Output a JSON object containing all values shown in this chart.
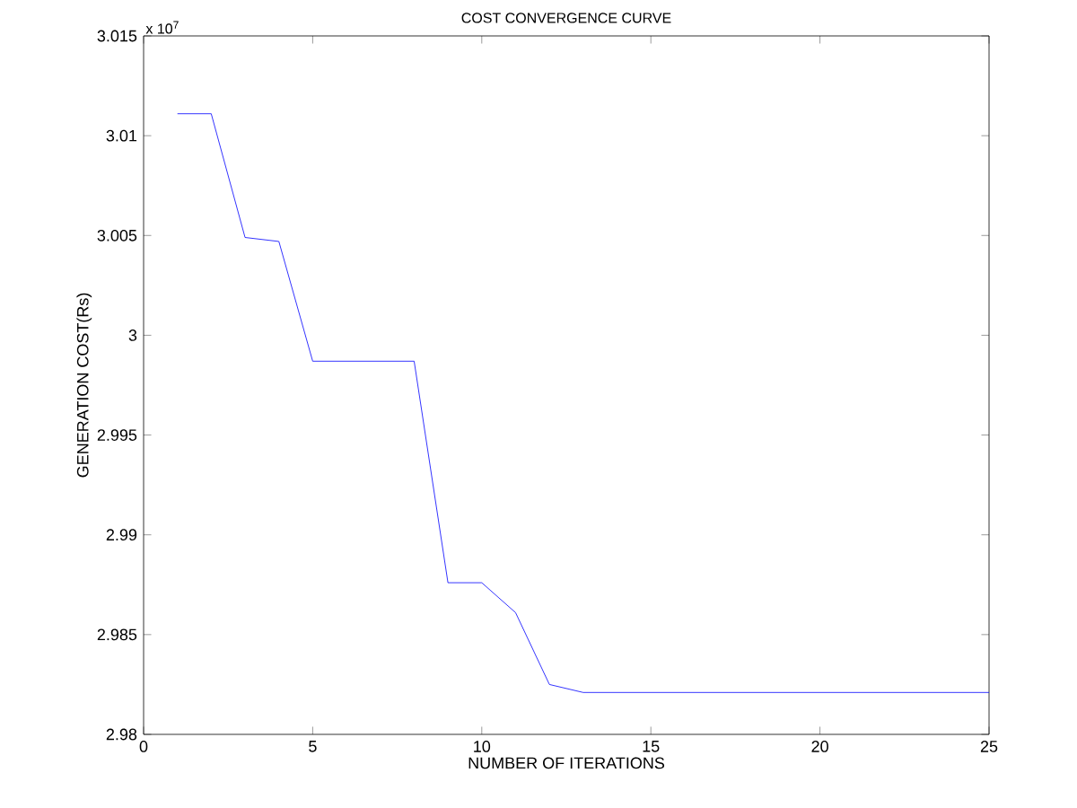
{
  "chart_data": {
    "type": "line",
    "title": "COST CONVERGENCE CURVE",
    "xlabel": "NUMBER OF ITERATIONS",
    "ylabel": "GENERATION COST(Rs)",
    "annotations": [
      "x 10$^{7}$"
    ],
    "x": [
      1,
      2,
      3,
      4,
      5,
      8,
      9,
      10,
      11,
      12,
      13,
      25
    ],
    "series": [
      {
        "color": "#0000ff",
        "values": [
          3.0111,
          3.0111,
          3.0049,
          3.0047,
          2.9987,
          2.9987,
          2.9876,
          2.9876,
          2.9861,
          2.9825,
          2.9821,
          2.9821
        ]
      }
    ],
    "xlim": [
      0,
      25
    ],
    "ylim": [
      2.98,
      3.015
    ],
    "xticks": [
      0,
      5,
      10,
      15,
      20,
      25
    ],
    "yticks": [
      2.98,
      2.985,
      2.99,
      2.995,
      3,
      3.005,
      3.01,
      3.015
    ],
    "grid": false,
    "marker": "none",
    "line_style": "solid"
  }
}
